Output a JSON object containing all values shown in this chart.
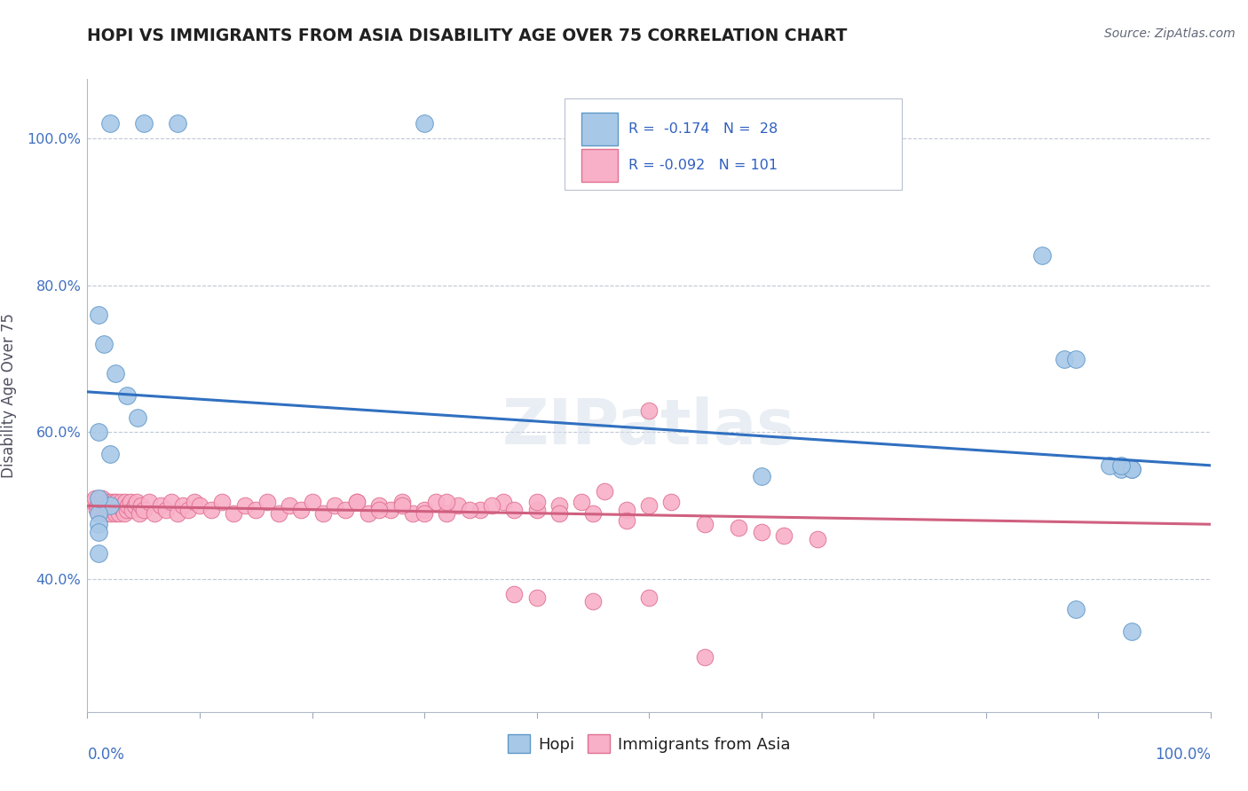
{
  "title": "HOPI VS IMMIGRANTS FROM ASIA DISABILITY AGE OVER 75 CORRELATION CHART",
  "source": "Source: ZipAtlas.com",
  "ylabel": "Disability Age Over 75",
  "legend_hopi_label": "Hopi",
  "legend_asia_label": "Immigrants from Asia",
  "hopi_R": -0.174,
  "hopi_N": 28,
  "asia_R": -0.092,
  "asia_N": 101,
  "hopi_color": "#a8c8e8",
  "hopi_edge_color": "#6098c8",
  "asia_color": "#f8b0c8",
  "asia_edge_color": "#e07090",
  "hopi_line_color": "#3070c0",
  "asia_line_color": "#d06080",
  "watermark": "ZIPatlas",
  "xlim": [
    0.0,
    1.0
  ],
  "ylim": [
    0.22,
    1.08
  ],
  "ytick_vals": [
    0.4,
    0.6,
    0.8,
    1.0
  ],
  "hopi_line_y0": 0.655,
  "hopi_line_y1": 0.555,
  "asia_line_y0": 0.5,
  "asia_line_y1": 0.475,
  "hopi_x": [
    0.02,
    0.05,
    0.08,
    0.3,
    0.01,
    0.015,
    0.025,
    0.035,
    0.045,
    0.01,
    0.02,
    0.85,
    0.87,
    0.92,
    0.93,
    0.02,
    0.6,
    0.88,
    0.91,
    0.01,
    0.01,
    0.01,
    0.01,
    0.88,
    0.93,
    0.93,
    0.92,
    0.01
  ],
  "hopi_y": [
    1.02,
    1.02,
    1.02,
    1.02,
    0.76,
    0.72,
    0.68,
    0.65,
    0.62,
    0.6,
    0.57,
    0.84,
    0.7,
    0.55,
    0.55,
    0.5,
    0.54,
    0.7,
    0.555,
    0.49,
    0.475,
    0.465,
    0.435,
    0.36,
    0.33,
    0.55,
    0.555,
    0.51
  ],
  "asia_x": [
    0.005,
    0.007,
    0.008,
    0.009,
    0.01,
    0.011,
    0.012,
    0.013,
    0.014,
    0.015,
    0.016,
    0.017,
    0.018,
    0.019,
    0.02,
    0.021,
    0.022,
    0.023,
    0.024,
    0.025,
    0.026,
    0.027,
    0.028,
    0.03,
    0.031,
    0.032,
    0.033,
    0.034,
    0.035,
    0.036,
    0.038,
    0.04,
    0.042,
    0.044,
    0.046,
    0.048,
    0.05,
    0.055,
    0.06,
    0.065,
    0.07,
    0.075,
    0.08,
    0.085,
    0.09,
    0.095,
    0.1,
    0.11,
    0.12,
    0.13,
    0.14,
    0.15,
    0.16,
    0.17,
    0.18,
    0.19,
    0.2,
    0.21,
    0.22,
    0.23,
    0.24,
    0.25,
    0.26,
    0.27,
    0.28,
    0.29,
    0.3,
    0.31,
    0.32,
    0.33,
    0.35,
    0.37,
    0.4,
    0.42,
    0.45,
    0.48,
    0.5,
    0.52,
    0.55,
    0.58,
    0.6,
    0.62,
    0.65,
    0.38,
    0.4,
    0.45,
    0.5,
    0.55,
    0.5,
    0.48,
    0.46,
    0.44,
    0.42,
    0.4,
    0.38,
    0.36,
    0.34,
    0.32,
    0.3,
    0.28,
    0.26,
    0.24
  ],
  "asia_y": [
    0.505,
    0.51,
    0.495,
    0.5,
    0.49,
    0.505,
    0.495,
    0.51,
    0.5,
    0.495,
    0.505,
    0.49,
    0.5,
    0.495,
    0.505,
    0.49,
    0.5,
    0.505,
    0.495,
    0.49,
    0.505,
    0.5,
    0.49,
    0.505,
    0.495,
    0.5,
    0.49,
    0.505,
    0.495,
    0.5,
    0.505,
    0.495,
    0.5,
    0.505,
    0.49,
    0.5,
    0.495,
    0.505,
    0.49,
    0.5,
    0.495,
    0.505,
    0.49,
    0.5,
    0.495,
    0.505,
    0.5,
    0.495,
    0.505,
    0.49,
    0.5,
    0.495,
    0.505,
    0.49,
    0.5,
    0.495,
    0.505,
    0.49,
    0.5,
    0.495,
    0.505,
    0.49,
    0.5,
    0.495,
    0.505,
    0.49,
    0.495,
    0.505,
    0.49,
    0.5,
    0.495,
    0.505,
    0.495,
    0.5,
    0.49,
    0.495,
    0.5,
    0.505,
    0.475,
    0.47,
    0.465,
    0.46,
    0.455,
    0.38,
    0.375,
    0.37,
    0.375,
    0.295,
    0.63,
    0.48,
    0.52,
    0.505,
    0.49,
    0.505,
    0.495,
    0.5,
    0.495,
    0.505,
    0.49,
    0.5,
    0.495,
    0.505
  ]
}
